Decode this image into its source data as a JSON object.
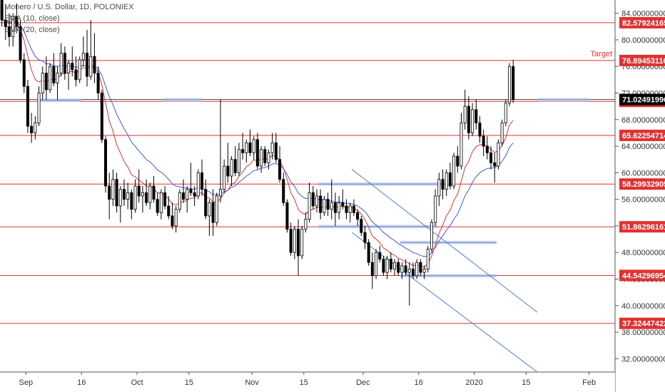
{
  "legend": {
    "title": "Monero / U.S. Dollar, 1D, POLONIEX",
    "ema1": "EMA (10, close)",
    "ema2": "EMA (20, close)"
  },
  "chart_data": {
    "type": "candlestick",
    "ylim": [
      30,
      86
    ],
    "y_ticks": [
      32,
      36,
      40,
      44,
      48,
      52,
      56,
      60,
      64,
      68,
      72,
      76,
      80,
      84
    ],
    "y_tick_labels": [
      "32.00000000",
      "36.00000000",
      "40.00000000",
      "44.00000000",
      "48.00000000",
      "52.00000000",
      "56.00000000",
      "60.00000000",
      "64.00000000",
      "68.00000000",
      "72.00000000",
      "76.00000000",
      "80.00000000",
      "84.00000000"
    ],
    "x_ticks": [
      {
        "label": "Sep",
        "day": 7
      },
      {
        "label": "16",
        "day": 22
      },
      {
        "label": "Oct",
        "day": 37
      },
      {
        "label": "15",
        "day": 51
      },
      {
        "label": "Nov",
        "day": 68
      },
      {
        "label": "15",
        "day": 82
      },
      {
        "label": "Dec",
        "day": 98
      },
      {
        "label": "16",
        "day": 113
      },
      {
        "label": "2020",
        "day": 128
      },
      {
        "label": "15",
        "day": 142
      },
      {
        "label": "Feb",
        "day": 159
      }
    ],
    "x_range": [
      0,
      166
    ],
    "horizontal_levels": [
      {
        "value": 82.57924165,
        "label": "82.57924165"
      },
      {
        "value": 76.89453116,
        "label": "76.89453116",
        "note": "Target"
      },
      {
        "value": 70.74032284,
        "label": "70.74032284"
      },
      {
        "value": 65.62254714,
        "label": "65.62254714"
      },
      {
        "value": 58.29932905,
        "label": "58.29932905"
      },
      {
        "value": 51.86296161,
        "label": "51.86296161"
      },
      {
        "value": 44.54296954,
        "label": "44.54296954"
      },
      {
        "value": 37.32447422,
        "label": "37.32447422"
      }
    ],
    "current_price": {
      "value": 71.02491996,
      "label": "71.02491996"
    },
    "support_zones": [
      {
        "x0": 10,
        "x1": 22,
        "value": 70.9
      },
      {
        "x0": 44,
        "x1": 55,
        "value": 71.0
      },
      {
        "x0": 145,
        "x1": 159,
        "value": 71.0
      },
      {
        "x0": 86,
        "x1": 119,
        "value": 58.3
      },
      {
        "x0": 86,
        "x1": 118,
        "value": 51.9
      },
      {
        "x0": 108,
        "x1": 134,
        "value": 49.5
      },
      {
        "x0": 108,
        "x1": 134,
        "value": 44.5
      }
    ],
    "channel_lines": [
      {
        "x0": 95,
        "y0": 60.5,
        "x1": 145,
        "y1": 39.0
      },
      {
        "x0": 95,
        "y0": 51.0,
        "x1": 145,
        "y1": 30.0
      }
    ],
    "candles": [
      [
        86.0,
        87.0,
        82.0,
        83.0
      ],
      [
        83.0,
        85.0,
        80.0,
        82.0
      ],
      [
        82.0,
        84.0,
        79.0,
        80.5
      ],
      [
        80.5,
        84.0,
        79.0,
        83.5
      ],
      [
        83.5,
        85.5,
        81.0,
        82.0
      ],
      [
        82.0,
        83.0,
        76.5,
        77.0
      ],
      [
        77.0,
        78.0,
        72.0,
        73.0
      ],
      [
        73.0,
        74.0,
        66.0,
        67.0
      ],
      [
        67.0,
        69.0,
        64.5,
        66.0
      ],
      [
        66.0,
        68.5,
        65.0,
        67.5
      ],
      [
        67.5,
        73.0,
        67.0,
        72.0
      ],
      [
        72.0,
        76.0,
        71.0,
        75.0
      ],
      [
        75.0,
        77.5,
        71.0,
        72.5
      ],
      [
        72.5,
        76.5,
        72.0,
        76.0
      ],
      [
        76.0,
        78.0,
        73.0,
        73.5
      ],
      [
        73.5,
        76.0,
        71.0,
        75.0
      ],
      [
        75.0,
        79.5,
        74.5,
        78.0
      ],
      [
        78.0,
        79.0,
        74.0,
        75.0
      ],
      [
        75.0,
        77.0,
        72.5,
        76.5
      ],
      [
        76.5,
        79.0,
        74.5,
        75.5
      ],
      [
        75.5,
        77.5,
        73.0,
        74.0
      ],
      [
        74.0,
        77.5,
        73.5,
        77.0
      ],
      [
        77.0,
        80.5,
        76.0,
        78.0
      ],
      [
        78.0,
        81.5,
        73.0,
        74.5
      ],
      [
        74.5,
        83.0,
        74.0,
        77.5
      ],
      [
        77.5,
        81.0,
        73.5,
        75.0
      ],
      [
        75.0,
        76.0,
        71.0,
        72.0
      ],
      [
        72.0,
        72.5,
        64.5,
        65.0
      ],
      [
        65.0,
        65.5,
        57.0,
        58.0
      ],
      [
        58.0,
        60.0,
        53.0,
        56.0
      ],
      [
        56.0,
        60.5,
        55.0,
        59.0
      ],
      [
        59.0,
        60.0,
        54.0,
        55.0
      ],
      [
        55.0,
        58.0,
        52.5,
        57.5
      ],
      [
        57.5,
        59.0,
        55.0,
        56.0
      ],
      [
        56.0,
        58.5,
        54.5,
        57.0
      ],
      [
        57.0,
        57.5,
        53.0,
        54.5
      ],
      [
        54.5,
        59.0,
        54.0,
        58.0
      ],
      [
        58.0,
        60.5,
        55.5,
        56.5
      ],
      [
        56.5,
        58.0,
        54.0,
        57.0
      ],
      [
        57.0,
        59.0,
        55.0,
        55.5
      ],
      [
        55.5,
        58.5,
        54.5,
        58.0
      ],
      [
        58.0,
        59.5,
        55.5,
        56.0
      ],
      [
        56.0,
        57.0,
        53.5,
        54.0
      ],
      [
        54.0,
        57.5,
        53.0,
        57.0
      ],
      [
        57.0,
        58.0,
        54.5,
        55.0
      ],
      [
        55.0,
        56.5,
        53.0,
        53.5
      ],
      [
        53.5,
        55.5,
        51.5,
        52.0
      ],
      [
        52.0,
        55.0,
        51.0,
        54.5
      ],
      [
        54.5,
        57.5,
        54.0,
        57.0
      ],
      [
        57.0,
        59.0,
        55.5,
        56.0
      ],
      [
        56.0,
        58.0,
        54.0,
        57.5
      ],
      [
        57.5,
        61.5,
        56.5,
        57.0
      ],
      [
        57.0,
        58.0,
        55.0,
        56.5
      ],
      [
        56.5,
        60.5,
        56.0,
        60.0
      ],
      [
        60.0,
        62.0,
        56.5,
        57.5
      ],
      [
        57.5,
        59.0,
        53.0,
        53.5
      ],
      [
        53.5,
        56.0,
        50.5,
        55.5
      ],
      [
        55.5,
        57.5,
        50.5,
        52.5
      ],
      [
        52.5,
        57.0,
        52.0,
        56.5
      ],
      [
        56.5,
        71.0,
        55.5,
        57.5
      ],
      [
        57.5,
        62.0,
        57.0,
        61.0
      ],
      [
        61.0,
        64.5,
        58.5,
        59.5
      ],
      [
        59.5,
        62.5,
        58.0,
        62.0
      ],
      [
        62.0,
        64.0,
        59.5,
        60.0
      ],
      [
        60.0,
        64.5,
        59.5,
        63.5
      ],
      [
        63.5,
        66.0,
        62.0,
        63.0
      ],
      [
        63.0,
        65.0,
        61.5,
        64.5
      ],
      [
        64.5,
        66.5,
        62.5,
        63.0
      ],
      [
        63.0,
        65.5,
        62.0,
        65.0
      ],
      [
        65.0,
        66.0,
        60.5,
        61.0
      ],
      [
        61.0,
        64.0,
        60.0,
        63.5
      ],
      [
        63.5,
        64.0,
        61.0,
        61.5
      ],
      [
        61.5,
        63.5,
        60.5,
        63.0
      ],
      [
        63.0,
        66.0,
        62.0,
        64.5
      ],
      [
        64.5,
        66.0,
        61.5,
        62.0
      ],
      [
        62.0,
        64.0,
        58.5,
        59.0
      ],
      [
        59.0,
        60.0,
        55.0,
        55.5
      ],
      [
        55.5,
        56.0,
        51.0,
        51.5
      ],
      [
        51.5,
        52.5,
        47.5,
        48.0
      ],
      [
        48.0,
        52.0,
        47.0,
        51.5
      ],
      [
        51.5,
        53.0,
        44.5,
        47.5
      ],
      [
        47.5,
        52.0,
        47.0,
        51.5
      ],
      [
        51.5,
        54.0,
        51.0,
        53.0
      ],
      [
        53.0,
        58.5,
        52.5,
        57.0
      ],
      [
        57.0,
        58.0,
        54.5,
        55.0
      ],
      [
        55.0,
        57.5,
        54.0,
        56.5
      ],
      [
        56.5,
        57.5,
        53.0,
        54.0
      ],
      [
        54.0,
        56.5,
        53.5,
        56.0
      ],
      [
        56.0,
        57.0,
        53.5,
        54.5
      ],
      [
        54.5,
        59.0,
        53.0,
        55.5
      ],
      [
        55.5,
        57.0,
        52.0,
        54.0
      ],
      [
        54.0,
        56.5,
        53.0,
        55.5
      ],
      [
        55.5,
        57.5,
        54.5,
        55.0
      ],
      [
        55.0,
        56.0,
        53.0,
        54.0
      ],
      [
        54.0,
        55.5,
        52.5,
        55.0
      ],
      [
        55.0,
        56.0,
        53.5,
        54.0
      ],
      [
        54.0,
        54.5,
        52.0,
        53.0
      ],
      [
        53.0,
        53.5,
        50.5,
        51.0
      ],
      [
        51.0,
        52.0,
        48.5,
        49.5
      ],
      [
        49.5,
        50.0,
        46.0,
        46.5
      ],
      [
        46.5,
        48.0,
        42.5,
        44.5
      ],
      [
        44.5,
        48.5,
        44.0,
        48.0
      ],
      [
        48.0,
        49.0,
        46.5,
        47.0
      ],
      [
        47.0,
        47.5,
        44.5,
        45.0
      ],
      [
        45.0,
        47.5,
        44.0,
        47.0
      ],
      [
        47.0,
        48.0,
        45.0,
        45.5
      ],
      [
        45.5,
        47.0,
        44.5,
        46.5
      ],
      [
        46.5,
        47.0,
        44.5,
        45.0
      ],
      [
        45.0,
        46.5,
        44.0,
        46.0
      ],
      [
        46.0,
        47.0,
        44.5,
        45.0
      ],
      [
        45.0,
        46.5,
        40.0,
        45.5
      ],
      [
        45.5,
        46.5,
        44.0,
        44.5
      ],
      [
        44.5,
        47.0,
        44.0,
        46.5
      ],
      [
        46.5,
        47.0,
        44.5,
        45.0
      ],
      [
        45.0,
        46.0,
        44.0,
        45.5
      ],
      [
        45.5,
        49.0,
        45.0,
        48.5
      ],
      [
        48.5,
        53.0,
        48.0,
        52.5
      ],
      [
        52.5,
        57.5,
        52.0,
        56.5
      ],
      [
        56.5,
        60.0,
        55.0,
        59.0
      ],
      [
        59.0,
        60.5,
        56.0,
        57.5
      ],
      [
        57.5,
        60.5,
        56.5,
        60.0
      ],
      [
        60.0,
        61.5,
        57.5,
        58.0
      ],
      [
        58.0,
        63.0,
        57.5,
        62.5
      ],
      [
        62.5,
        64.0,
        60.0,
        61.0
      ],
      [
        61.0,
        69.0,
        60.5,
        67.5
      ],
      [
        67.5,
        72.5,
        66.5,
        70.0
      ],
      [
        70.0,
        71.5,
        65.0,
        66.0
      ],
      [
        66.0,
        70.5,
        65.5,
        69.5
      ],
      [
        69.5,
        71.0,
        66.5,
        67.5
      ],
      [
        67.5,
        68.5,
        64.5,
        65.5
      ],
      [
        65.5,
        66.5,
        62.5,
        64.0
      ],
      [
        64.0,
        65.5,
        62.0,
        63.0
      ],
      [
        63.0,
        64.0,
        60.5,
        61.5
      ],
      [
        61.5,
        63.0,
        58.5,
        61.0
      ],
      [
        61.0,
        65.0,
        60.5,
        64.5
      ],
      [
        64.5,
        68.0,
        64.0,
        67.5
      ],
      [
        67.5,
        71.0,
        67.0,
        70.5
      ],
      [
        70.5,
        76.5,
        70.0,
        76.0
      ],
      [
        76.0,
        77.0,
        70.5,
        71.0
      ]
    ]
  }
}
